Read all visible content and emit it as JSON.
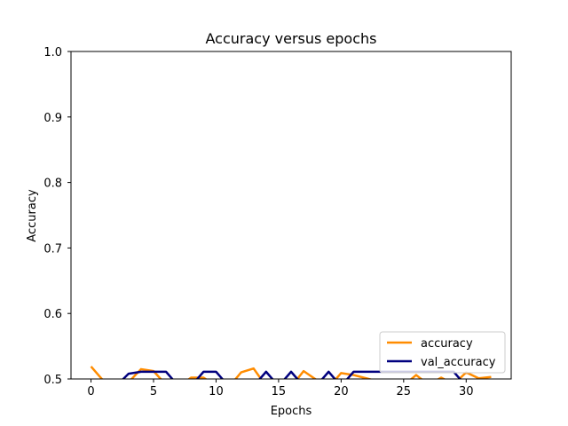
{
  "chart_data": {
    "type": "line",
    "title": "Accuracy versus epochs",
    "xlabel": "Epochs",
    "ylabel": "Accuracy",
    "xlim": [
      -1.6,
      33.6
    ],
    "ylim": [
      0.5,
      1.0
    ],
    "xticks": [
      0,
      5,
      10,
      15,
      20,
      25,
      30
    ],
    "yticks": [
      0.5,
      0.6,
      0.7,
      0.8,
      0.9,
      1.0
    ],
    "xtick_labels": [
      "0",
      "5",
      "10",
      "15",
      "20",
      "25",
      "30"
    ],
    "ytick_labels": [
      "0.5",
      "0.6",
      "0.7",
      "0.8",
      "0.9",
      "1.0"
    ],
    "grid": false,
    "legend_position": "lower right",
    "x": [
      0,
      1,
      2,
      3,
      4,
      5,
      6,
      7,
      8,
      9,
      10,
      11,
      12,
      13,
      14,
      15,
      16,
      17,
      18,
      19,
      20,
      21,
      22,
      23,
      24,
      25,
      26,
      27,
      28,
      29,
      30,
      31,
      32
    ],
    "series": [
      {
        "name": "accuracy",
        "color": "#ff8c00",
        "values": [
          0.519,
          0.497,
          0.493,
          0.495,
          0.515,
          0.512,
          0.491,
          0.488,
          0.502,
          0.502,
          0.489,
          0.487,
          0.51,
          0.516,
          0.489,
          0.492,
          0.488,
          0.512,
          0.499,
          0.487,
          0.509,
          0.506,
          0.501,
          0.496,
          0.491,
          0.49,
          0.506,
          0.491,
          0.502,
          0.492,
          0.51,
          0.501,
          0.503
        ]
      },
      {
        "name": "val_accuracy",
        "color": "#00007f",
        "values": [
          0.489,
          0.489,
          0.489,
          0.508,
          0.511,
          0.511,
          0.511,
          0.489,
          0.489,
          0.511,
          0.511,
          0.489,
          0.489,
          0.489,
          0.511,
          0.489,
          0.511,
          0.489,
          0.489,
          0.511,
          0.489,
          0.511,
          0.511,
          0.511,
          0.511,
          0.511,
          0.511,
          0.511,
          0.511,
          0.511,
          0.489,
          0.489,
          0.489
        ]
      }
    ]
  }
}
